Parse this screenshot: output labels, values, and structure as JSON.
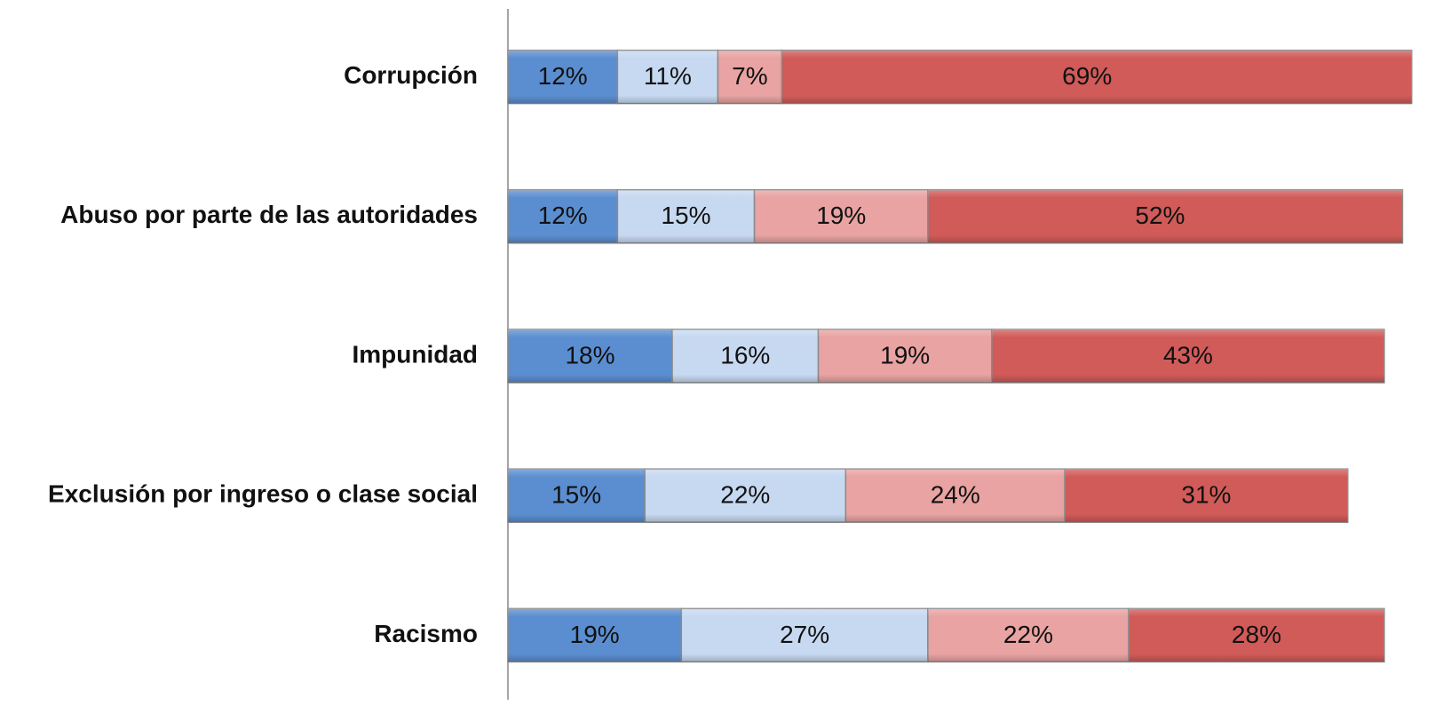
{
  "chart_data": {
    "type": "bar",
    "orientation": "horizontal",
    "stacked": true,
    "categories": [
      "Corrupción",
      "Abuso por parte de las autoridades",
      "Impunidad",
      "Exclusión por ingreso o clase social",
      "Racismo"
    ],
    "xlim": [
      0,
      100
    ],
    "series": [
      {
        "color": "#5b8ed0",
        "values": [
          12,
          12,
          18,
          15,
          19
        ],
        "value_labels": [
          "12%",
          "12%",
          "18%",
          "15%",
          "19%"
        ]
      },
      {
        "color": "#c7d9f1",
        "values": [
          11,
          15,
          16,
          22,
          27
        ],
        "value_labels": [
          "11%",
          "15%",
          "16%",
          "22%",
          "27%"
        ]
      },
      {
        "color": "#e8a3a2",
        "values": [
          7,
          19,
          19,
          24,
          22
        ],
        "value_labels": [
          "7%",
          "19%",
          "19%",
          "24%",
          "22%"
        ]
      },
      {
        "color": "#d05b59",
        "values": [
          69,
          52,
          43,
          31,
          28
        ],
        "value_labels": [
          "69%",
          "52%",
          "43%",
          "31%",
          "28%"
        ]
      }
    ]
  }
}
